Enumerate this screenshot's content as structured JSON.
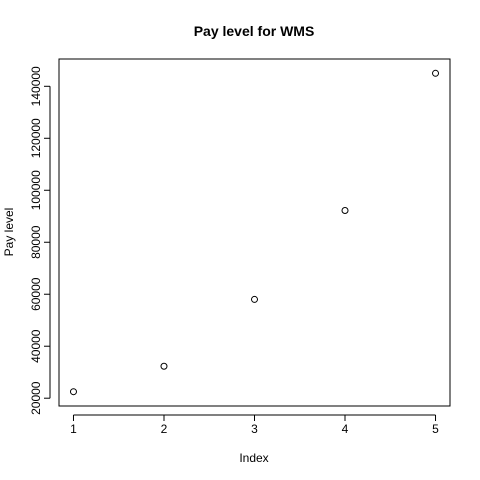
{
  "chart_data": {
    "type": "scatter",
    "title": "Pay level for  WMS",
    "xlabel": "Index",
    "ylabel": "Pay level",
    "x": [
      1,
      2,
      3,
      4,
      5
    ],
    "y": [
      22500,
      32300,
      58000,
      92200,
      145000
    ],
    "xlim": [
      0.84,
      5.16
    ],
    "ylim": [
      17000,
      150500
    ],
    "xticks": [
      1,
      2,
      3,
      4,
      5
    ],
    "yticks": [
      20000,
      40000,
      60000,
      80000,
      100000,
      120000,
      140000
    ],
    "xtick_labels": [
      "1",
      "2",
      "3",
      "4",
      "5"
    ],
    "ytick_labels": [
      "20000",
      "40000",
      "60000",
      "80000",
      "100000",
      "120000",
      "140000"
    ],
    "marker": "open-circle",
    "grid": false,
    "colors": {
      "point": "#000000",
      "axis": "#000000",
      "background": "#ffffff"
    }
  }
}
